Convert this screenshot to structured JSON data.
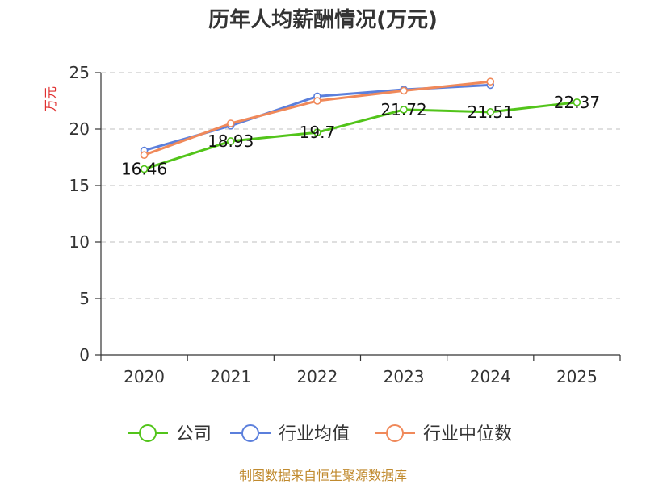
{
  "chart_data": {
    "type": "line",
    "title": "历年人均薪酬情况(万元)",
    "ylabel": "万元",
    "xlabel": "",
    "categories": [
      "2020",
      "2021",
      "2022",
      "2023",
      "2024",
      "2025"
    ],
    "ylim": [
      0,
      25
    ],
    "yticks": [
      0,
      5,
      10,
      15,
      20,
      25
    ],
    "grid": true,
    "legend_position": "bottom",
    "series": [
      {
        "name": "公司",
        "values": [
          16.46,
          18.93,
          19.7,
          21.72,
          21.51,
          22.37
        ],
        "color": "#52c41a",
        "show_labels": true
      },
      {
        "name": "行业均值",
        "values": [
          18.1,
          20.3,
          22.9,
          23.5,
          23.9,
          null
        ],
        "color": "#5b7fdc",
        "show_labels": false
      },
      {
        "name": "行业中位数",
        "values": [
          17.7,
          20.5,
          22.5,
          23.4,
          24.2,
          null
        ],
        "color": "#f0895a",
        "show_labels": false
      }
    ],
    "source": "制图数据来自恒生聚源数据库"
  }
}
